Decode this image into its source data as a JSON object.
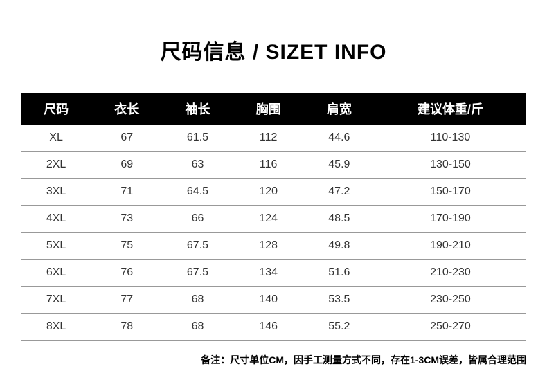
{
  "title": "尺码信息 / SIZET INFO",
  "table": {
    "type": "table",
    "header_bg": "#000000",
    "header_color": "#ffffff",
    "row_border_color": "#999999",
    "text_color": "#333333",
    "header_fontsize": 18,
    "cell_fontsize": 16,
    "columns": [
      {
        "key": "size",
        "label": "尺码",
        "width": "14%"
      },
      {
        "key": "length",
        "label": "衣长",
        "width": "14%"
      },
      {
        "key": "sleeve",
        "label": "袖长",
        "width": "14%"
      },
      {
        "key": "chest",
        "label": "胸围",
        "width": "14%"
      },
      {
        "key": "shoulder",
        "label": "肩宽",
        "width": "14%"
      },
      {
        "key": "weight",
        "label": "建议体重/斤",
        "width": "30%"
      }
    ],
    "rows": [
      {
        "size": "XL",
        "length": "67",
        "sleeve": "61.5",
        "chest": "112",
        "shoulder": "44.6",
        "weight": "110-130"
      },
      {
        "size": "2XL",
        "length": "69",
        "sleeve": "63",
        "chest": "116",
        "shoulder": "45.9",
        "weight": "130-150"
      },
      {
        "size": "3XL",
        "length": "71",
        "sleeve": "64.5",
        "chest": "120",
        "shoulder": "47.2",
        "weight": "150-170"
      },
      {
        "size": "4XL",
        "length": "73",
        "sleeve": "66",
        "chest": "124",
        "shoulder": "48.5",
        "weight": "170-190"
      },
      {
        "size": "5XL",
        "length": "75",
        "sleeve": "67.5",
        "chest": "128",
        "shoulder": "49.8",
        "weight": "190-210"
      },
      {
        "size": "6XL",
        "length": "76",
        "sleeve": "67.5",
        "chest": "134",
        "shoulder": "51.6",
        "weight": "210-230"
      },
      {
        "size": "7XL",
        "length": "77",
        "sleeve": "68",
        "chest": "140",
        "shoulder": "53.5",
        "weight": "230-250"
      },
      {
        "size": "8XL",
        "length": "78",
        "sleeve": "68",
        "chest": "146",
        "shoulder": "55.2",
        "weight": "250-270"
      }
    ]
  },
  "footnote": "备注：尺寸单位CM，因手工测量方式不同，存在1-3CM误差，皆属合理范围"
}
